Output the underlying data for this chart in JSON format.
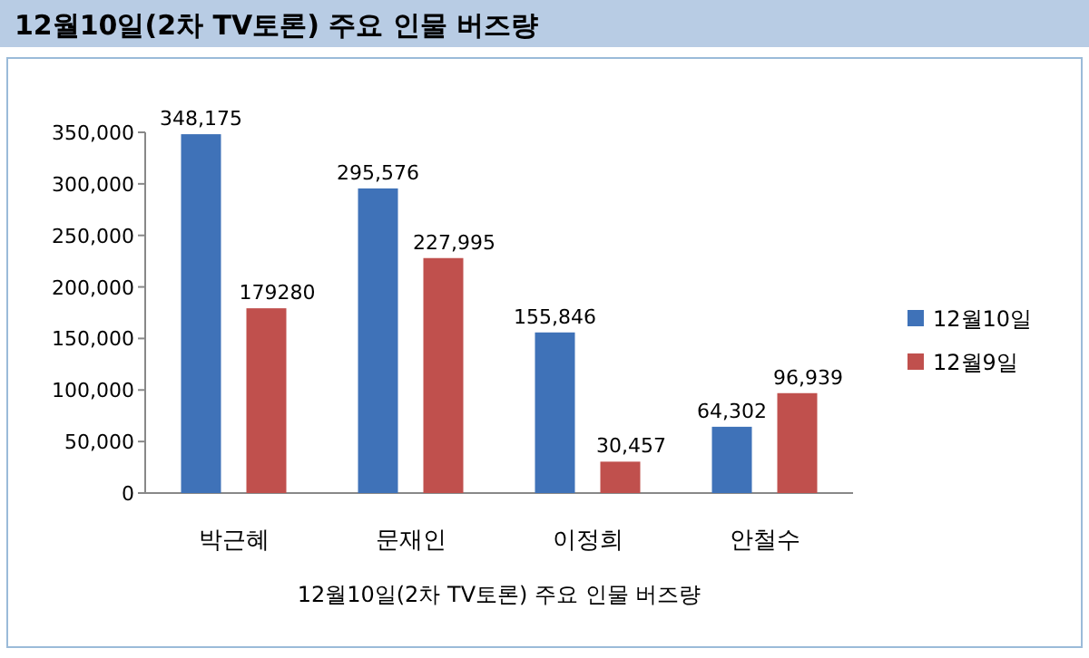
{
  "chart_data": {
    "type": "bar",
    "title": "12월10일(2차 TV토론) 주요 인물 버즈량",
    "xlabel": "12월10일(2차 TV토론) 주요 인물 버즈량",
    "categories": [
      "박근혜",
      "문재인",
      "이정희",
      "안철수"
    ],
    "series": [
      {
        "name": "12월10일",
        "color": "#3f72b8",
        "values": [
          348175,
          295576,
          155846,
          64302
        ],
        "value_labels": [
          "348,175",
          "295,576",
          "155,846",
          "64,302"
        ]
      },
      {
        "name": "12월9일",
        "color": "#c0504d",
        "values": [
          179280,
          227995,
          30457,
          96939
        ],
        "value_labels": [
          "179280",
          "227,995",
          "30,457",
          "96,939"
        ]
      }
    ],
    "ylim": [
      0,
      350000
    ],
    "yticks": [
      {
        "value": 0,
        "label": "0"
      },
      {
        "value": 50000,
        "label": "50,000"
      },
      {
        "value": 100000,
        "label": "100,000"
      },
      {
        "value": 150000,
        "label": "150,000"
      },
      {
        "value": 200000,
        "label": "200,000"
      },
      {
        "value": 250000,
        "label": "250,000"
      },
      {
        "value": 300000,
        "label": "300,000"
      },
      {
        "value": 350000,
        "label": "350,000"
      }
    ],
    "grid": false,
    "legend": "right"
  }
}
